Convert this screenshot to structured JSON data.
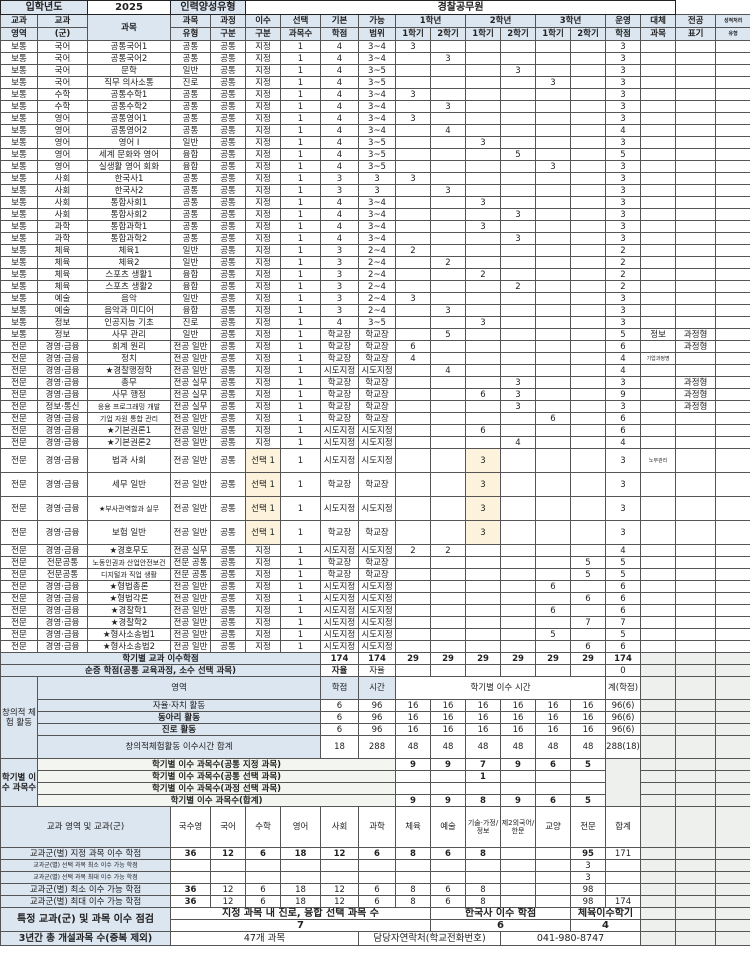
{
  "title_row": {
    "entry_year_label": "입학년도",
    "entry_year": "2025",
    "type_label": "인력양성유형",
    "type_value": "경찰공무원"
  },
  "header": {
    "row1": [
      "교과",
      "교과",
      "과목",
      "과목",
      "과정",
      "이수",
      "선택",
      "기본",
      "가능",
      "1학년",
      "2학년",
      "3학년",
      "운영",
      "대체",
      "전공",
      "성적처리"
    ],
    "row2": [
      "영역",
      "(군)",
      "유형",
      "구분",
      "구분",
      "과목수",
      "학점",
      "범위",
      "1학기",
      "2학기",
      "1학기",
      "2학기",
      "1학기",
      "2학기",
      "학점",
      "과목",
      "표기",
      "유형"
    ]
  },
  "rows": [
    [
      "보통",
      "국어",
      "공통국어1",
      "공통",
      "공통",
      "지정",
      "1",
      "4",
      "3~4",
      "3",
      "",
      "",
      "",
      "",
      "",
      "3",
      "",
      "",
      ""
    ],
    [
      "보통",
      "국어",
      "공통국어2",
      "공통",
      "공통",
      "지정",
      "1",
      "4",
      "3~4",
      "",
      "3",
      "",
      "",
      "",
      "",
      "3",
      "",
      "",
      ""
    ],
    [
      "보통",
      "국어",
      "문학",
      "일반",
      "공통",
      "지정",
      "1",
      "4",
      "3~5",
      "",
      "",
      "",
      "3",
      "",
      "",
      "3",
      "",
      "",
      ""
    ],
    [
      "보통",
      "국어",
      "직무 의사소통",
      "진로",
      "공통",
      "지정",
      "1",
      "4",
      "3~5",
      "",
      "",
      "",
      "",
      "3",
      "",
      "3",
      "",
      "",
      ""
    ],
    [
      "보통",
      "수학",
      "공통수학1",
      "공통",
      "공통",
      "지정",
      "1",
      "4",
      "3~4",
      "3",
      "",
      "",
      "",
      "",
      "",
      "3",
      "",
      "",
      ""
    ],
    [
      "보통",
      "수학",
      "공통수학2",
      "공통",
      "공통",
      "지정",
      "1",
      "4",
      "3~4",
      "",
      "3",
      "",
      "",
      "",
      "",
      "3",
      "",
      "",
      ""
    ],
    [
      "보통",
      "영어",
      "공통영어1",
      "공통",
      "공통",
      "지정",
      "1",
      "4",
      "3~4",
      "3",
      "",
      "",
      "",
      "",
      "",
      "3",
      "",
      "",
      ""
    ],
    [
      "보통",
      "영어",
      "공통영어2",
      "공통",
      "공통",
      "지정",
      "1",
      "4",
      "3~4",
      "",
      "4",
      "",
      "",
      "",
      "",
      "4",
      "",
      "",
      ""
    ],
    [
      "보통",
      "영어",
      "영어 I",
      "일반",
      "공통",
      "지정",
      "1",
      "4",
      "3~5",
      "",
      "",
      "3",
      "",
      "",
      "",
      "3",
      "",
      "",
      ""
    ],
    [
      "보통",
      "영어",
      "세계 문화와 영어",
      "융합",
      "공통",
      "지정",
      "1",
      "4",
      "3~5",
      "",
      "",
      "",
      "5",
      "",
      "",
      "5",
      "",
      "",
      ""
    ],
    [
      "보통",
      "영어",
      "실생활 영어 회화",
      "융합",
      "공통",
      "지정",
      "1",
      "4",
      "3~5",
      "",
      "",
      "",
      "",
      "3",
      "",
      "3",
      "",
      "",
      ""
    ],
    [
      "보통",
      "사회",
      "한국사1",
      "공통",
      "공통",
      "지정",
      "1",
      "3",
      "3",
      "3",
      "",
      "",
      "",
      "",
      "",
      "3",
      "",
      "",
      ""
    ],
    [
      "보통",
      "사회",
      "한국사2",
      "공통",
      "공통",
      "지정",
      "1",
      "3",
      "3",
      "",
      "3",
      "",
      "",
      "",
      "",
      "3",
      "",
      "",
      ""
    ],
    [
      "보통",
      "사회",
      "통합사회1",
      "공통",
      "공통",
      "지정",
      "1",
      "4",
      "3~4",
      "",
      "",
      "3",
      "",
      "",
      "",
      "3",
      "",
      "",
      ""
    ],
    [
      "보통",
      "사회",
      "통합사회2",
      "공통",
      "공통",
      "지정",
      "1",
      "4",
      "3~4",
      "",
      "",
      "",
      "3",
      "",
      "",
      "3",
      "",
      "",
      ""
    ],
    [
      "보통",
      "과학",
      "통합과학1",
      "공통",
      "공통",
      "지정",
      "1",
      "4",
      "3~4",
      "",
      "",
      "3",
      "",
      "",
      "",
      "3",
      "",
      "",
      ""
    ],
    [
      "보통",
      "과학",
      "통합과학2",
      "공통",
      "공통",
      "지정",
      "1",
      "4",
      "3~4",
      "",
      "",
      "",
      "3",
      "",
      "",
      "3",
      "",
      "",
      ""
    ],
    [
      "보통",
      "체육",
      "체육1",
      "일반",
      "공통",
      "지정",
      "1",
      "3",
      "2~4",
      "2",
      "",
      "",
      "",
      "",
      "",
      "2",
      "",
      "",
      ""
    ],
    [
      "보통",
      "체육",
      "체육2",
      "일반",
      "공통",
      "지정",
      "1",
      "3",
      "2~4",
      "",
      "2",
      "",
      "",
      "",
      "",
      "2",
      "",
      "",
      ""
    ],
    [
      "보통",
      "체육",
      "스포츠 생활1",
      "융합",
      "공통",
      "지정",
      "1",
      "3",
      "2~4",
      "",
      "",
      "2",
      "",
      "",
      "",
      "2",
      "",
      "",
      ""
    ],
    [
      "보통",
      "체육",
      "스포츠 생활2",
      "융합",
      "공통",
      "지정",
      "1",
      "3",
      "2~4",
      "",
      "",
      "",
      "2",
      "",
      "",
      "2",
      "",
      "",
      ""
    ],
    [
      "보통",
      "예술",
      "음악",
      "일반",
      "공통",
      "지정",
      "1",
      "3",
      "2~4",
      "3",
      "",
      "",
      "",
      "",
      "",
      "3",
      "",
      "",
      ""
    ],
    [
      "보통",
      "예술",
      "음악과 미디어",
      "융합",
      "공통",
      "지정",
      "1",
      "3",
      "2~4",
      "",
      "3",
      "",
      "",
      "",
      "",
      "3",
      "",
      "",
      ""
    ],
    [
      "보통",
      "정보",
      "인공지능 기초",
      "진로",
      "공통",
      "지정",
      "1",
      "4",
      "3~5",
      "",
      "",
      "3",
      "",
      "",
      "",
      "3",
      "",
      "",
      ""
    ],
    [
      "보통",
      "정보",
      "사무 관리",
      "일반",
      "공통",
      "지정",
      "1",
      "학교장",
      "학교장",
      "",
      "5",
      "",
      "",
      "",
      "",
      "5",
      "정보",
      "과정형",
      ""
    ],
    [
      "전문",
      "경영·금융",
      "회계 원리",
      "전공 일반",
      "공통",
      "지정",
      "1",
      "학교장",
      "학교장",
      "6",
      "",
      "",
      "",
      "",
      "",
      "6",
      "",
      "과정형",
      ""
    ],
    [
      "전문",
      "경영·금융",
      "정치",
      "전공 일반",
      "공통",
      "지정",
      "1",
      "학교장",
      "학교장",
      "4",
      "",
      "",
      "",
      "",
      "",
      "4",
      "기업과정명",
      "",
      ""
    ],
    [
      "전문",
      "경영·금융",
      "★경찰행정학",
      "전공 일반",
      "공통",
      "지정",
      "1",
      "시도지정",
      "시도지정",
      "",
      "4",
      "",
      "",
      "",
      "",
      "4",
      "",
      "",
      ""
    ],
    [
      "전문",
      "경영·금융",
      "총무",
      "전공 실무",
      "공통",
      "지정",
      "1",
      "학교장",
      "학교장",
      "",
      "",
      "",
      "3",
      "",
      "",
      "3",
      "",
      "과정형",
      ""
    ],
    [
      "전문",
      "경영·금융",
      "사무 행정",
      "전공 실무",
      "공통",
      "지정",
      "1",
      "학교장",
      "학교장",
      "",
      "",
      "6",
      "3",
      "",
      "",
      "9",
      "",
      "과정형",
      ""
    ],
    [
      "전문",
      "정보·통신",
      "응용 프로그래밍 개발",
      "전공 실무",
      "공통",
      "지정",
      "1",
      "학교장",
      "학교장",
      "",
      "",
      "",
      "3",
      "",
      "",
      "3",
      "",
      "과정형",
      ""
    ],
    [
      "전문",
      "경영·금융",
      "기업 자원 통합 관리",
      "전공 일반",
      "공통",
      "지정",
      "1",
      "학교장",
      "학교장",
      "",
      "",
      "",
      "",
      "6",
      "",
      "6",
      "",
      "",
      ""
    ],
    [
      "전문",
      "경영·금융",
      "★기본권론1",
      "전공 일반",
      "공통",
      "지정",
      "1",
      "시도지정",
      "시도지정",
      "",
      "",
      "6",
      "",
      "",
      "",
      "6",
      "",
      "",
      ""
    ],
    [
      "전문",
      "경영·금융",
      "★기본권론2",
      "전공 일반",
      "공통",
      "지정",
      "1",
      "시도지정",
      "시도지정",
      "",
      "",
      "",
      "4",
      "",
      "",
      "4",
      "",
      "",
      ""
    ],
    [
      "전문",
      "경영·금융",
      "법과 사회",
      "전공 일반",
      "공통",
      "선택 1",
      "1",
      "시도지정",
      "시도지정",
      "",
      "",
      "3",
      "",
      "",
      "",
      "3",
      "노무관리",
      "",
      ""
    ],
    [
      "전문",
      "경영·금융",
      "세무 일반",
      "전공 일반",
      "공통",
      "선택 1",
      "1",
      "학교장",
      "학교장",
      "",
      "",
      "3",
      "",
      "",
      "",
      "3",
      "",
      "",
      ""
    ],
    [
      "전문",
      "경영·금융",
      "★부사관역할과 실무",
      "전공 일반",
      "공통",
      "선택 1",
      "1",
      "시도지정",
      "시도지정",
      "",
      "",
      "3",
      "",
      "",
      "",
      "3",
      "",
      "",
      ""
    ],
    [
      "전문",
      "경영·금융",
      "보험 일반",
      "전공 일반",
      "공통",
      "선택 1",
      "1",
      "학교장",
      "학교장",
      "",
      "",
      "3",
      "",
      "",
      "",
      "3",
      "",
      "",
      ""
    ],
    [
      "전문",
      "경영·금융",
      "★경호무도",
      "전공 실무",
      "공통",
      "지정",
      "1",
      "시도지정",
      "시도지정",
      "2",
      "2",
      "",
      "",
      "",
      "",
      "4",
      "",
      "",
      ""
    ],
    [
      "전문",
      "전문공통",
      "노동인권과 산업안전보건",
      "전문 공통",
      "공통",
      "지정",
      "1",
      "학교장",
      "학교장",
      "",
      "",
      "",
      "",
      "",
      "5",
      "5",
      "",
      "",
      ""
    ],
    [
      "전문",
      "전문공통",
      "디지털과 직업 생활",
      "전문 공통",
      "공통",
      "지정",
      "1",
      "학교장",
      "학교장",
      "",
      "",
      "",
      "",
      "",
      "5",
      "5",
      "",
      "",
      ""
    ],
    [
      "전문",
      "경영·금융",
      "★형법총론",
      "전공 일반",
      "공통",
      "지정",
      "1",
      "시도지정",
      "시도지정",
      "",
      "",
      "",
      "",
      "6",
      "",
      "6",
      "",
      "",
      ""
    ],
    [
      "전문",
      "경영·금융",
      "★형법각론",
      "전공 일반",
      "공통",
      "지정",
      "1",
      "시도지정",
      "시도지정",
      "",
      "",
      "",
      "",
      "",
      "6",
      "6",
      "",
      "",
      ""
    ],
    [
      "전문",
      "경영·금융",
      "★경찰학1",
      "전공 일반",
      "공통",
      "지정",
      "1",
      "시도지정",
      "시도지정",
      "",
      "",
      "",
      "",
      "6",
      "",
      "6",
      "",
      "",
      ""
    ],
    [
      "전문",
      "경영·금융",
      "★경찰학2",
      "전공 일반",
      "공통",
      "지정",
      "1",
      "시도지정",
      "시도지정",
      "",
      "",
      "",
      "",
      "",
      "7",
      "7",
      "",
      "",
      ""
    ],
    [
      "전문",
      "경영·금융",
      "★형사소송법1",
      "전공 일반",
      "공통",
      "지정",
      "1",
      "시도지정",
      "시도지정",
      "",
      "",
      "",
      "",
      "5",
      "",
      "5",
      "",
      "",
      ""
    ],
    [
      "전문",
      "경영·금융",
      "★형사소송법2",
      "전공 일반",
      "공통",
      "지정",
      "1",
      "시도지정",
      "시도지정",
      "",
      "",
      "",
      "",
      "",
      "6",
      "6",
      "",
      "",
      ""
    ]
  ],
  "summary": {
    "credits": {
      "label": "학기별 교과 이수학점",
      "basic": "174",
      "range": "174",
      "semesters": [
        "29",
        "29",
        "29",
        "29",
        "29",
        "29"
      ],
      "total": "174"
    },
    "net": {
      "label": "순증 학점(공통 교육과정, 소수 선택 과목)",
      "basic": "자율",
      "range": "자율",
      "total": "0"
    },
    "creative": {
      "group_label": "창의적 체험 활동",
      "area_label": "영역",
      "credit_label": "학점",
      "hours_label": "시간",
      "sem_label": "학기별 이수 시간",
      "total_label": "계(학점)",
      "rows": [
        {
          "label": "자율·자치 활동",
          "credit": "6",
          "hours": "96",
          "sem": [
            "16",
            "16",
            "16",
            "16",
            "16",
            "16"
          ],
          "total": "96(6)"
        },
        {
          "label": "동아리 활동",
          "credit": "6",
          "hours": "96",
          "sem": [
            "16",
            "16",
            "16",
            "16",
            "16",
            "16"
          ],
          "total": "96(6)"
        },
        {
          "label": "진로 활동",
          "credit": "6",
          "hours": "96",
          "sem": [
            "16",
            "16",
            "16",
            "16",
            "16",
            "16"
          ],
          "total": "96(6)"
        }
      ],
      "sum": {
        "label": "창의적체험활동 이수시간 합계",
        "credit": "18",
        "hours": "288",
        "sem": [
          "48",
          "48",
          "48",
          "48",
          "48",
          "48"
        ],
        "total": "288(18)"
      }
    },
    "course_counts": {
      "group_label": "학기별 이수 과목수",
      "rows": [
        {
          "label": "학기별 이수 과목수(공통 지정 과목)",
          "sem": [
            "9",
            "9",
            "7",
            "9",
            "6",
            "5"
          ]
        },
        {
          "label": "학기별 이수 과목수(공통 선택 과목)",
          "sem": [
            "",
            "",
            "1",
            "",
            "",
            ""
          ]
        },
        {
          "label": "학기별 이수 과목수(과정 선택 과목)",
          "sem": [
            "",
            "",
            "",
            "",
            "",
            ""
          ]
        },
        {
          "label": "학기별 이수 과목수(합계)",
          "sem": [
            "9",
            "9",
            "8",
            "9",
            "6",
            "5"
          ]
        }
      ]
    },
    "subject_groups": {
      "header_label": "교과 영역 및 교과(군)",
      "columns": [
        "국수영",
        "국어",
        "수학",
        "영어",
        "사회",
        "과학",
        "체육",
        "예술",
        "기술·가정/정보",
        "제2외국어/한문",
        "교양",
        "전문",
        "합계"
      ],
      "rows": [
        {
          "label": "교과군(별) 지정 과목 이수 학점",
          "values": [
            "36",
            "12",
            "6",
            "18",
            "12",
            "6",
            "8",
            "6",
            "8",
            "",
            "",
            "95",
            "171"
          ]
        },
        {
          "label": "교과군(별) 선택 과목 최소 이수 가능 학점",
          "values": [
            "",
            "",
            "",
            "",
            "",
            "",
            "",
            "",
            "",
            "",
            "",
            "3",
            ""
          ]
        },
        {
          "label": "교과군(별) 선택 과목 최대 이수 가능 학점",
          "values": [
            "",
            "",
            "",
            "",
            "",
            "",
            "",
            "",
            "",
            "",
            "",
            "3",
            ""
          ]
        },
        {
          "label": "교과군(별) 최소 이수 가능 학점",
          "values": [
            "36",
            "12",
            "6",
            "18",
            "12",
            "6",
            "8",
            "6",
            "8",
            "",
            "",
            "98",
            ""
          ]
        },
        {
          "label": "교과군(별) 최대 이수 가능 학점",
          "values": [
            "36",
            "12",
            "6",
            "18",
            "12",
            "6",
            "8",
            "6",
            "8",
            "",
            "",
            "98",
            "174"
          ]
        }
      ]
    },
    "check": {
      "label": "특정 교과(군) 및 과목 이수 점검",
      "career_label": "지정 과목 내 진로, 융합 선택 과목 수",
      "career_value": "7",
      "history_label": "한국사 이수 학점",
      "history_value": "6",
      "pe_label": "체육이수학기",
      "pe_value": "4"
    },
    "footer": {
      "label": "3년간 총 개설과목 수(중복 제외)",
      "value": "47개 과목",
      "contact_label": "담당자연락처(학교전화번호)",
      "contact_value": "041-980-8747"
    }
  },
  "colors": {
    "header_bg": "#dce6f1",
    "selection_bg": "#fdf3dc",
    "grey_bg": "#eef0ee"
  }
}
